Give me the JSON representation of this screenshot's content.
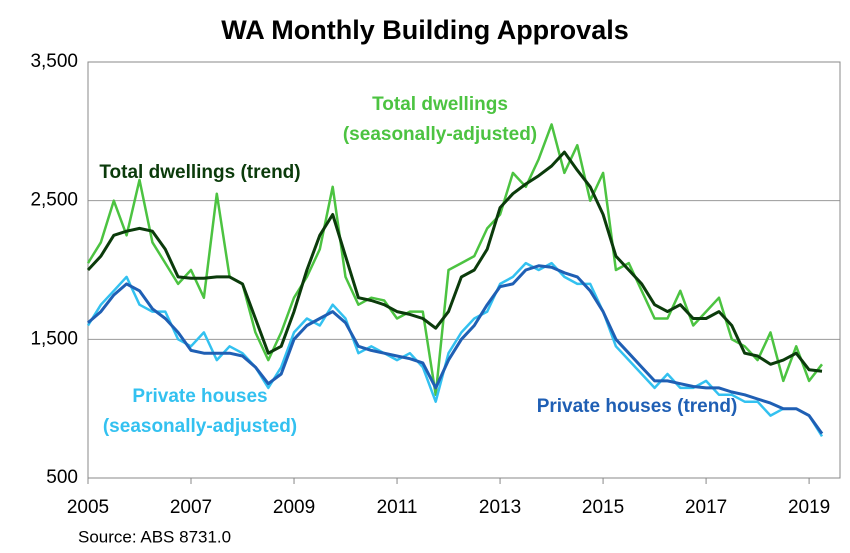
{
  "chart_data": {
    "type": "line",
    "title": "WA Monthly Building Approvals",
    "source": "Source: ABS 8731.0",
    "x": [
      2005,
      2005.25,
      2005.5,
      2005.75,
      2006,
      2006.25,
      2006.5,
      2006.75,
      2007,
      2007.25,
      2007.5,
      2007.75,
      2008,
      2008.25,
      2008.5,
      2008.75,
      2009,
      2009.25,
      2009.5,
      2009.75,
      2010,
      2010.25,
      2010.5,
      2010.75,
      2011,
      2011.25,
      2011.5,
      2011.75,
      2012,
      2012.25,
      2012.5,
      2012.75,
      2013,
      2013.25,
      2013.5,
      2013.75,
      2014,
      2014.25,
      2014.5,
      2014.75,
      2015,
      2015.25,
      2015.5,
      2015.75,
      2016,
      2016.25,
      2016.5,
      2016.75,
      2017,
      2017.25,
      2017.5,
      2017.75,
      2018,
      2018.25,
      2018.5,
      2018.75,
      2019,
      2019.25
    ],
    "xlim": [
      2005,
      2019.6
    ],
    "xticks": [
      2005,
      2007,
      2009,
      2011,
      2013,
      2015,
      2017,
      2019
    ],
    "ylim": [
      500,
      3500
    ],
    "yticks": [
      500,
      {
        "value": 1500,
        "label": "1,500"
      },
      {
        "value": 2500,
        "label": "2,500"
      },
      {
        "value": 3500,
        "label": "3,500"
      }
    ],
    "grid": true,
    "series": [
      {
        "name": [
          "Total dwellings",
          "(seasonally-adjusted)"
        ],
        "color": "#4cc341",
        "width": 2.5,
        "values": [
          2050,
          2200,
          2500,
          2250,
          2650,
          2200,
          2050,
          1900,
          2000,
          1800,
          2550,
          1950,
          1900,
          1550,
          1350,
          1550,
          1800,
          1950,
          2150,
          2600,
          1950,
          1750,
          1800,
          1780,
          1650,
          1700,
          1700,
          1100,
          2000,
          2050,
          2100,
          2300,
          2400,
          2700,
          2600,
          2800,
          3050,
          2700,
          2900,
          2500,
          2700,
          2000,
          2050,
          1850,
          1650,
          1650,
          1850,
          1600,
          1700,
          1800,
          1500,
          1450,
          1350,
          1550,
          1200,
          1450,
          1200,
          1320
        ]
      },
      {
        "name": "Total dwellings (trend)",
        "color": "#0b3b0b",
        "width": 3,
        "values": [
          2000,
          2100,
          2250,
          2280,
          2300,
          2280,
          2150,
          1950,
          1940,
          1940,
          1950,
          1950,
          1900,
          1650,
          1400,
          1450,
          1700,
          2000,
          2250,
          2400,
          2100,
          1800,
          1780,
          1750,
          1700,
          1680,
          1650,
          1580,
          1700,
          1950,
          2000,
          2150,
          2450,
          2550,
          2620,
          2680,
          2750,
          2850,
          2720,
          2600,
          2400,
          2100,
          2000,
          1900,
          1750,
          1700,
          1750,
          1650,
          1650,
          1700,
          1600,
          1400,
          1380,
          1320,
          1350,
          1400,
          1280,
          1270
        ]
      },
      {
        "name": [
          "Private houses",
          "(seasonally-adjusted)"
        ],
        "color": "#33c1f0",
        "width": 2.5,
        "values": [
          1600,
          1750,
          1850,
          1950,
          1750,
          1700,
          1700,
          1500,
          1450,
          1550,
          1350,
          1450,
          1400,
          1300,
          1150,
          1300,
          1550,
          1650,
          1600,
          1750,
          1650,
          1400,
          1450,
          1400,
          1350,
          1400,
          1300,
          1050,
          1400,
          1550,
          1650,
          1700,
          1900,
          1950,
          2050,
          2000,
          2050,
          1950,
          1900,
          1900,
          1700,
          1450,
          1350,
          1250,
          1150,
          1250,
          1150,
          1150,
          1200,
          1100,
          1100,
          1050,
          1050,
          950,
          1000,
          1000,
          950,
          800
        ]
      },
      {
        "name": "Private houses (trend)",
        "color": "#1f5fb4",
        "width": 3,
        "values": [
          1620,
          1700,
          1820,
          1900,
          1850,
          1720,
          1650,
          1550,
          1420,
          1400,
          1400,
          1400,
          1380,
          1300,
          1180,
          1250,
          1500,
          1600,
          1650,
          1700,
          1620,
          1450,
          1420,
          1400,
          1380,
          1360,
          1330,
          1150,
          1350,
          1500,
          1600,
          1750,
          1880,
          1900,
          2000,
          2030,
          2020,
          1980,
          1950,
          1850,
          1700,
          1500,
          1400,
          1300,
          1200,
          1200,
          1180,
          1160,
          1150,
          1150,
          1120,
          1100,
          1070,
          1040,
          1000,
          1000,
          950,
          820
        ]
      }
    ]
  }
}
